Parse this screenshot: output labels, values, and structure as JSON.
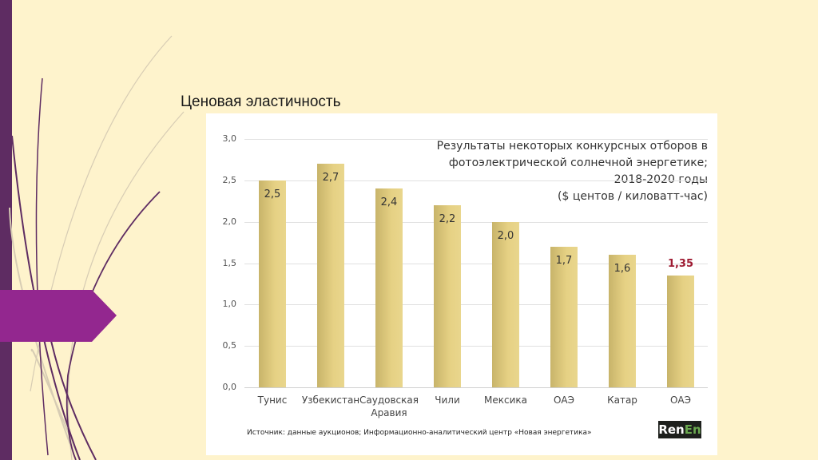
{
  "slide": {
    "title": "Ценовая эластичность"
  },
  "chart_data": {
    "type": "bar",
    "title": "Результаты некоторых конкурсных отборов в фотоэлектрической солнечной энергетике; 2018-2020 годы ($ центов / киловатт-час)",
    "title_lines": [
      "Результаты некоторых конкурсных отборов в",
      "фотоэлектрической солнечной энергетике;",
      "2018-2020 годы",
      "($ центов / киловатт-час)"
    ],
    "categories": [
      "Тунис",
      "Узбекистан",
      "Саудовская Аравия",
      "Чили",
      "Мексика",
      "ОАЭ",
      "Катар",
      "ОАЭ"
    ],
    "category_lines": [
      [
        "Тунис"
      ],
      [
        "Узбекистан"
      ],
      [
        "Саудовская",
        "Аравия"
      ],
      [
        "Чили"
      ],
      [
        "Мексика"
      ],
      [
        "ОАЭ"
      ],
      [
        "Катар"
      ],
      [
        "ОАЭ"
      ]
    ],
    "values": [
      2.5,
      2.7,
      2.4,
      2.2,
      2.0,
      1.7,
      1.6,
      1.35
    ],
    "value_labels": [
      "2,5",
      "2,7",
      "2,4",
      "2,2",
      "2,0",
      "1,7",
      "1,6",
      "1,35"
    ],
    "highlight_index": 7,
    "highlight_color": "#9e1b32",
    "bar_color": "#e6d184",
    "xlabel": "",
    "ylabel": "",
    "ylim": [
      0,
      3.0
    ],
    "yticks": [
      "3,0",
      "2,5",
      "2,0",
      "1,5",
      "1,0",
      "0,5",
      "0,0"
    ],
    "grid": true,
    "legend": null,
    "source": "Источник: данные аукционов; Информационно-аналитический центр «Новая энергетика»",
    "logo": {
      "part1": "Ren",
      "part2": "En"
    }
  },
  "colors": {
    "background": "#fef3cc",
    "accent_purple": "#5e2c62",
    "arrow_magenta": "#93278f"
  }
}
